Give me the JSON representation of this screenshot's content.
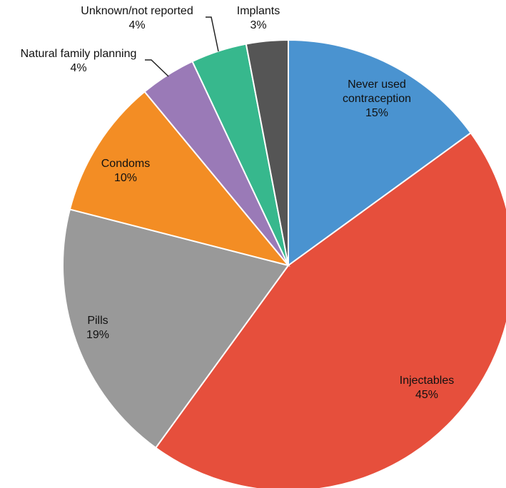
{
  "chart_data": {
    "type": "pie",
    "start": "12 o'clock, clockwise",
    "slices": [
      {
        "label": [
          "Never used",
          "contraception"
        ],
        "value": 15,
        "value_text": "15%",
        "color": "#4a93d0"
      },
      {
        "label": [
          "Injectables"
        ],
        "value": 45,
        "value_text": "45%",
        "color": "#e64f3c"
      },
      {
        "label": [
          "Pills"
        ],
        "value": 19,
        "value_text": "19%",
        "color": "#999999"
      },
      {
        "label": [
          "Condoms"
        ],
        "value": 10,
        "value_text": "10%",
        "color": "#f38d24"
      },
      {
        "label": [
          "Natural family planning"
        ],
        "value": 4,
        "value_text": "4%",
        "color": "#9a7ab7"
      },
      {
        "label": [
          "Unknown/not reported"
        ],
        "value": 4,
        "value_text": "4%",
        "color": "#37b88d"
      },
      {
        "label": [
          "Implants"
        ],
        "value": 3,
        "value_text": "3%",
        "color": "#555555"
      }
    ]
  }
}
